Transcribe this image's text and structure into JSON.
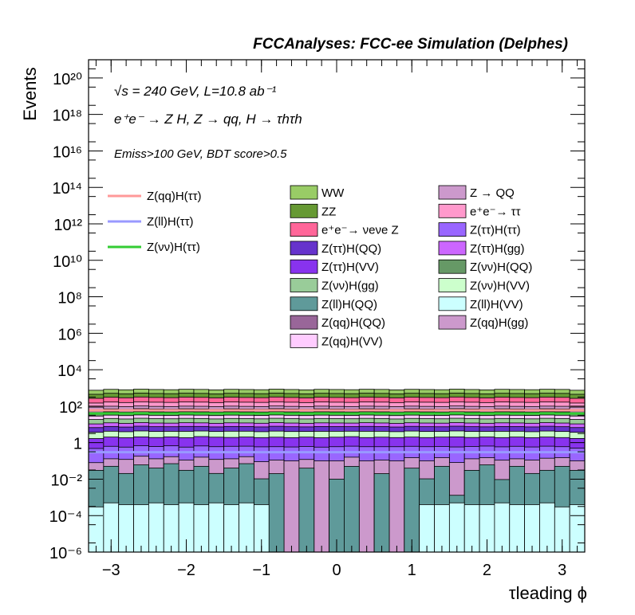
{
  "header": "FCCAnalyses: FCC-ee Simulation (Delphes)",
  "annotations": {
    "line1": "√s = 240 GeV, L=10.8 ab⁻¹",
    "line2": "e⁺e⁻ → Z H, Z → qq, H → τhτh",
    "line3": "Emiss>100 GeV, BDT score>0.5"
  },
  "chart_data": {
    "type": "area",
    "title": "FCCAnalyses: FCC-ee Simulation (Delphes)",
    "xlabel": "τleading ϕ",
    "ylabel": "Events",
    "xlim": [
      -3.3,
      3.3
    ],
    "ylim": [
      1e-06,
      1e+21
    ],
    "yscale": "log",
    "grid": false,
    "legend_position": "top",
    "x_ticks": [
      "−3",
      "−2",
      "−1",
      "0",
      "1",
      "2",
      "3"
    ],
    "x_tick_values": [
      -3,
      -2,
      -1,
      0,
      1,
      2,
      3
    ],
    "y_ticks": [
      "10⁻⁶",
      "10⁻⁴",
      "10⁻²",
      "1",
      "10²",
      "10⁴",
      "10⁶",
      "10⁸",
      "10¹⁰",
      "10¹²",
      "10¹⁴",
      "10¹⁶",
      "10¹⁸",
      "10²⁰"
    ],
    "y_tick_exponents": [
      -6,
      -4,
      -2,
      0,
      2,
      4,
      6,
      8,
      10,
      12,
      14,
      16,
      18,
      20
    ],
    "bins": [
      -3.3,
      -3.1,
      -2.9,
      -2.7,
      -2.5,
      -2.3,
      -2.1,
      -1.9,
      -1.7,
      -1.5,
      -1.3,
      -1.1,
      -0.9,
      -0.7,
      -0.5,
      -0.3,
      -0.1,
      0.1,
      0.3,
      0.5,
      0.7,
      0.9,
      1.1,
      1.3,
      1.5,
      1.7,
      1.9,
      2.1,
      2.3,
      2.5,
      2.7,
      2.9,
      3.1,
      3.3
    ],
    "stack": [
      {
        "name": "Z(ll)H(VV)",
        "color": "#ccffff",
        "values": [
          0.0003,
          0.0005,
          0.0004,
          0.0004,
          0.0005,
          0.0004,
          0.0005,
          0.0004,
          0.0005,
          0.0004,
          0.0005,
          0.0004,
          0.0,
          0.0,
          0.0,
          0.0,
          0.0,
          0.0,
          0.0,
          0.0,
          0.0,
          0.0,
          0.0004,
          0.0004,
          0.0005,
          0.0004,
          0.0004,
          0.0005,
          0.0004,
          0.0004,
          0.0005,
          0.0003,
          0.0004
        ]
      },
      {
        "name": "Z(ll)H(QQ)",
        "color": "#5f9a9a",
        "values": [
          0.03,
          0.05,
          0.02,
          0.06,
          0.04,
          0.07,
          0.03,
          0.05,
          0.02,
          0.04,
          0.07,
          0.01,
          0.02,
          0.0,
          0.04,
          0.0,
          0.01,
          0.05,
          0.0,
          0.02,
          0.0,
          0.04,
          0.01,
          0.05,
          0.0008,
          0.03,
          0.06,
          0.009,
          0.05,
          0.02,
          0.03,
          0.05,
          0.03
        ]
      },
      {
        "name": "Z(qq)H(gg)",
        "color": "#cc99cc",
        "values": [
          0.05,
          0.08,
          0.1,
          0.12,
          0.09,
          0.1,
          0.08,
          0.11,
          0.1,
          0.09,
          0.1,
          0.08,
          0.09,
          0.1,
          0.08,
          0.1,
          0.09,
          0.11,
          0.1,
          0.09,
          0.1,
          0.11,
          0.09,
          0.1,
          0.08,
          0.1,
          0.09,
          0.1,
          0.08,
          0.09,
          0.11,
          0.1,
          0.07
        ]
      },
      {
        "name": "Z(ττ)H(ττ)",
        "color": "#9966ff",
        "values": [
          0.4,
          0.5,
          0.45,
          0.5,
          0.48,
          0.5,
          0.46,
          0.5,
          0.48,
          0.5,
          0.47,
          0.5,
          0.49,
          0.48,
          0.5,
          0.47,
          0.5,
          0.48,
          0.5,
          0.49,
          0.5,
          0.48,
          0.5,
          0.47,
          0.5,
          0.49,
          0.5,
          0.48,
          0.5,
          0.47,
          0.5,
          0.45,
          0.4
        ]
      },
      {
        "name": "Z(ττ)H(VV)",
        "color": "#8833ee",
        "values": [
          1.2,
          1.4,
          1.3,
          1.4,
          1.3,
          1.4,
          1.3,
          1.5,
          1.4,
          1.3,
          1.4,
          1.3,
          1.4,
          1.3,
          1.4,
          1.3,
          1.4,
          1.5,
          1.3,
          1.4,
          1.3,
          1.4,
          1.3,
          1.4,
          1.5,
          1.3,
          1.4,
          1.3,
          1.4,
          1.3,
          1.4,
          1.3,
          1.2
        ]
      },
      {
        "name": "Z(νν)H(VV)",
        "color": "#ccffcc",
        "values": [
          2,
          2.2,
          2.1,
          2.3,
          2.2,
          2.1,
          2.3,
          2.2,
          2.1,
          2.3,
          2.2,
          2.1,
          2.3,
          2.2,
          2.1,
          2.3,
          2.2,
          2.1,
          2.3,
          2.2,
          2.1,
          2.3,
          2.2,
          2.1,
          2.3,
          2.2,
          2.1,
          2.3,
          2.2,
          2.1,
          2.3,
          2.2,
          2
        ]
      },
      {
        "name": "Z(ττ)H(QQ)",
        "color": "#6633cc",
        "values": [
          3,
          3.5,
          3.2,
          3.6,
          3.4,
          3.3,
          3.6,
          3.4,
          3.2,
          3.5,
          3.4,
          3.3,
          3.6,
          3.4,
          3.2,
          3.5,
          3.4,
          3.3,
          3.6,
          3.4,
          3.2,
          3.5,
          3.4,
          3.3,
          3.6,
          3.4,
          3.2,
          3.5,
          3.4,
          3.3,
          3.6,
          3.4,
          3
        ]
      },
      {
        "name": "Z(ττ)H(gg)",
        "color": "#cc66ff",
        "values": [
          4,
          4.5,
          4.2,
          4.6,
          4.4,
          4.3,
          4.6,
          4.4,
          4.2,
          4.5,
          4.4,
          4.3,
          4.6,
          4.4,
          4.2,
          4.5,
          4.4,
          4.3,
          4.6,
          4.4,
          4.2,
          4.5,
          4.4,
          4.3,
          4.6,
          4.4,
          4.2,
          4.5,
          4.4,
          4.3,
          4.6,
          4.4,
          4
        ]
      },
      {
        "name": "Z(νν)H(gg)",
        "color": "#99cc99",
        "values": [
          8,
          9,
          8.5,
          9.2,
          8.8,
          8.6,
          9.1,
          8.9,
          8.5,
          9,
          8.8,
          8.6,
          9.2,
          8.8,
          8.5,
          9,
          8.8,
          8.6,
          9.1,
          8.9,
          8.5,
          9,
          8.8,
          8.6,
          9.2,
          8.8,
          8.5,
          9,
          8.8,
          8.6,
          9.1,
          8.9,
          8
        ]
      },
      {
        "name": "Z(qq)H(VV)",
        "color": "#ffccff",
        "values": [
          10,
          11,
          10.5,
          11.2,
          10.8,
          10.6,
          11.1,
          10.9,
          10.5,
          11,
          10.8,
          10.6,
          11.2,
          10.8,
          10.5,
          11,
          10.8,
          10.6,
          11.1,
          10.9,
          10.5,
          11,
          10.8,
          10.6,
          11.2,
          10.8,
          10.5,
          11,
          10.8,
          10.6,
          11.1,
          10.9,
          10
        ]
      },
      {
        "name": "Z(νν)H(QQ)",
        "color": "#669966",
        "values": [
          15,
          17,
          16,
          17.5,
          16.8,
          16.4,
          17.2,
          16.9,
          16.2,
          17,
          16.8,
          16.4,
          17.5,
          16.8,
          16.2,
          17,
          16.8,
          16.4,
          17.2,
          16.9,
          16.2,
          17,
          16.8,
          16.4,
          17.5,
          16.8,
          16.2,
          17,
          16.8,
          16.4,
          17.2,
          16.9,
          15
        ]
      },
      {
        "name": "Z(qq)H(QQ)",
        "color": "#996699",
        "values": [
          20,
          22,
          21,
          23,
          22,
          21.5,
          22.5,
          22,
          21,
          22.8,
          22,
          21.5,
          23,
          22,
          21,
          22.8,
          22,
          21.5,
          22.5,
          22,
          21,
          22.8,
          22,
          21.5,
          23,
          22,
          21,
          22.8,
          22,
          21.5,
          22.5,
          22,
          20
        ]
      },
      {
        "name": "Z → QQ",
        "color": "#cc99cc",
        "values": [
          25,
          28,
          26,
          29,
          27,
          26.5,
          28,
          27.5,
          26,
          28.5,
          27,
          26.5,
          29,
          27,
          26,
          28.5,
          27,
          26.5,
          28,
          27.5,
          26,
          28.5,
          27,
          26.5,
          29,
          27,
          26,
          28.5,
          27,
          26.5,
          28,
          27.5,
          25
        ]
      },
      {
        "name": "e⁺e⁻→ ττ",
        "color": "#ff99cc",
        "values": [
          60,
          70,
          65,
          72,
          68,
          66,
          71,
          69,
          64,
          70,
          68,
          66,
          72,
          68,
          64,
          70,
          68,
          66,
          71,
          69,
          64,
          70,
          68,
          66,
          72,
          68,
          64,
          70,
          68,
          66,
          71,
          69,
          60
        ]
      },
      {
        "name": "e⁺e⁻→ νeνe Z",
        "color": "#ff6699",
        "values": [
          120,
          140,
          130,
          145,
          136,
          132,
          142,
          138,
          128,
          140,
          136,
          132,
          145,
          136,
          128,
          140,
          136,
          132,
          142,
          138,
          128,
          140,
          136,
          132,
          145,
          136,
          128,
          140,
          136,
          132,
          142,
          138,
          120
        ]
      },
      {
        "name": "ZZ",
        "color": "#669933",
        "values": [
          180,
          200,
          190,
          205,
          196,
          192,
          202,
          198,
          188,
          200,
          196,
          192,
          205,
          196,
          188,
          200,
          196,
          192,
          202,
          198,
          188,
          200,
          196,
          192,
          205,
          196,
          188,
          200,
          196,
          192,
          202,
          198,
          180
        ]
      },
      {
        "name": "WW",
        "color": "#99cc66",
        "values": [
          300,
          330,
          315,
          335,
          325,
          318,
          332,
          328,
          312,
          330,
          325,
          318,
          335,
          325,
          312,
          330,
          325,
          318,
          332,
          328,
          312,
          330,
          325,
          318,
          335,
          325,
          312,
          330,
          325,
          318,
          332,
          328,
          300
        ]
      }
    ],
    "signal_lines": [
      {
        "name": "Z(qq)H(ττ)",
        "color": "#ff9999",
        "value": 60
      },
      {
        "name": "Z(ll)H(ττ)",
        "color": "#9999ff",
        "value": 0.3
      },
      {
        "name": "Z(νν)H(ττ)",
        "color": "#33cc33",
        "value": 40
      }
    ],
    "legend_col1": [
      "WW",
      "ZZ",
      "e⁺e⁻→ νeνe Z",
      "Z(ττ)H(QQ)",
      "Z(ττ)H(VV)",
      "Z(νν)H(gg)",
      "Z(ll)H(QQ)",
      "Z(qq)H(QQ)",
      "Z(qq)H(VV)"
    ],
    "legend_col2": [
      "Z → QQ",
      "e⁺e⁻→ ττ",
      "Z(ττ)H(ττ)",
      "Z(ττ)H(gg)",
      "Z(νν)H(QQ)",
      "Z(νν)H(VV)",
      "Z(ll)H(VV)",
      "Z(qq)H(gg)"
    ]
  }
}
